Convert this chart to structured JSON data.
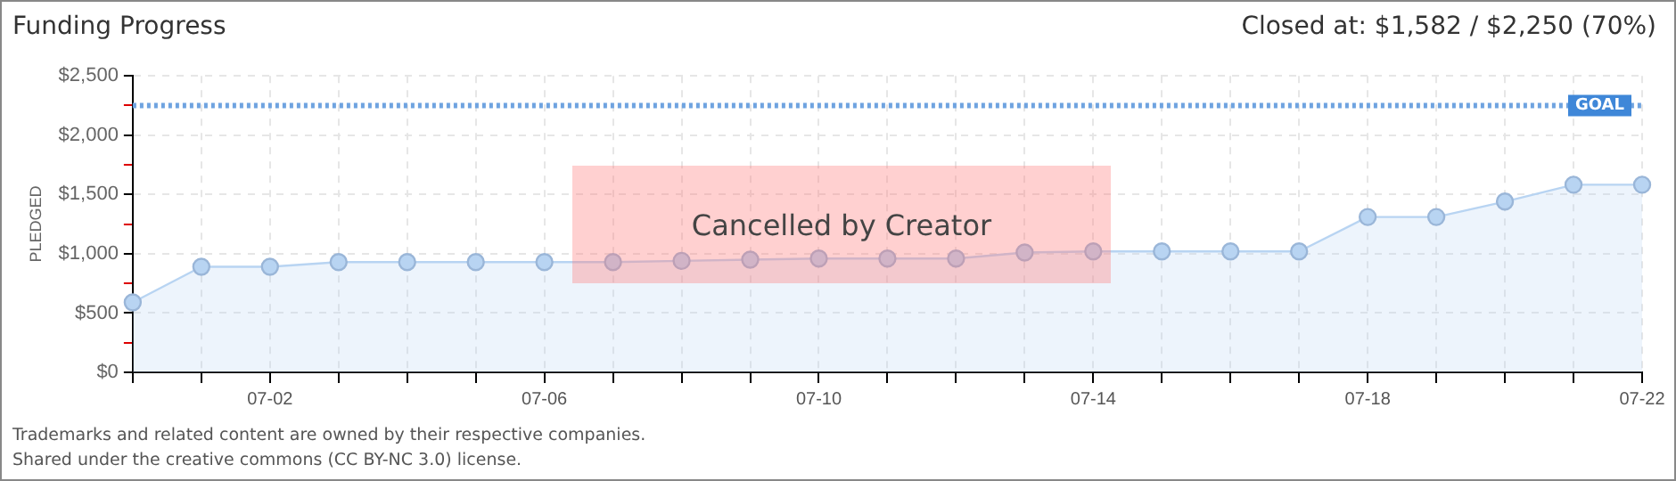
{
  "chart_data": {
    "type": "area",
    "title": "Funding Progress",
    "ylabel": "PLEDGED",
    "categories": [
      null,
      null,
      "07-02",
      null,
      null,
      null,
      "07-06",
      null,
      null,
      null,
      "07-10",
      null,
      null,
      null,
      "07-14",
      null,
      null,
      null,
      "07-18",
      null,
      null,
      null,
      "07-22"
    ],
    "series": [
      {
        "color": "#b8d4f2",
        "values": [
          590,
          890,
          890,
          930,
          930,
          930,
          930,
          930,
          940,
          950,
          960,
          960,
          960,
          1010,
          1020,
          1020,
          1020,
          1020,
          1310,
          1310,
          1440,
          1582,
          1582
        ]
      }
    ],
    "ylim": [
      0,
      2500
    ],
    "yticks": [
      {
        "value": 0,
        "label": "$0"
      },
      {
        "value": 250,
        "label": null
      },
      {
        "value": 500,
        "label": "$500"
      },
      {
        "value": 750,
        "label": null
      },
      {
        "value": 1000,
        "label": "$1,000"
      },
      {
        "value": 1250,
        "label": null
      },
      {
        "value": 1500,
        "label": "$1,500"
      },
      {
        "value": 1750,
        "label": null
      },
      {
        "value": 2000,
        "label": "$2,000"
      },
      {
        "value": 2250,
        "label": null
      },
      {
        "value": 2500,
        "label": "$2,500"
      }
    ],
    "ref_lines": [
      {
        "axis": "y",
        "value": 2250,
        "label": "GOAL",
        "color": "#6fa3e0",
        "line_style": "dotted"
      }
    ],
    "grid": true,
    "legend": false,
    "marker": "circle",
    "line_style": "solid",
    "annotations": [
      "Closed at: $1,582 / $2,250 (70%)",
      "Cancelled by Creator",
      "Trademarks and related content are owned by their respective companies.",
      "Shared under the creative commons (CC BY-NC 3.0) license."
    ]
  }
}
